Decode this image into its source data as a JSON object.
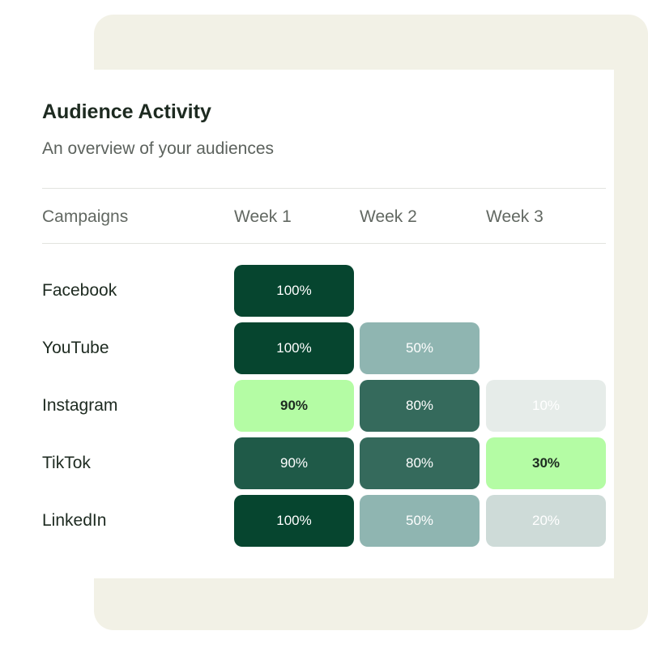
{
  "header": {
    "title": "Audience Activity",
    "subtitle": "An overview of your audiences"
  },
  "columns": {
    "campaigns": "Campaigns",
    "weeks": [
      "Week 1",
      "Week 2",
      "Week 3"
    ]
  },
  "rows": [
    {
      "campaign": "Facebook",
      "cells": [
        {
          "label": "100%",
          "value": 100,
          "bg": "#06452f",
          "fg": "#ffffff",
          "bold": false
        }
      ]
    },
    {
      "campaign": "YouTube",
      "cells": [
        {
          "label": "100%",
          "value": 100,
          "bg": "#06452f",
          "fg": "#ffffff",
          "bold": false
        },
        {
          "label": "50%",
          "value": 50,
          "bg": "#8fb5b1",
          "fg": "#ffffff",
          "bold": false
        }
      ]
    },
    {
      "campaign": "Instagram",
      "cells": [
        {
          "label": "90%",
          "value": 90,
          "bg": "#b4fca4",
          "fg": "#1d2a20",
          "bold": true
        },
        {
          "label": "80%",
          "value": 80,
          "bg": "#356a5c",
          "fg": "#ffffff",
          "bold": false
        },
        {
          "label": "10%",
          "value": 10,
          "bg": "#e6ece9",
          "fg": "#ffffff",
          "bold": false
        }
      ]
    },
    {
      "campaign": "TikTok",
      "cells": [
        {
          "label": "90%",
          "value": 90,
          "bg": "#1f5a48",
          "fg": "#ffffff",
          "bold": false
        },
        {
          "label": "80%",
          "value": 80,
          "bg": "#356a5c",
          "fg": "#ffffff",
          "bold": false
        },
        {
          "label": "30%",
          "value": 30,
          "bg": "#b4fca4",
          "fg": "#1d2a20",
          "bold": true
        }
      ]
    },
    {
      "campaign": "LinkedIn",
      "cells": [
        {
          "label": "100%",
          "value": 100,
          "bg": "#06452f",
          "fg": "#ffffff",
          "bold": false
        },
        {
          "label": "50%",
          "value": 50,
          "bg": "#8fb5b1",
          "fg": "#ffffff",
          "bold": false
        },
        {
          "label": "20%",
          "value": 20,
          "bg": "#cedbd8",
          "fg": "#ffffff",
          "bold": false
        }
      ]
    }
  ],
  "colors": {
    "backdrop": "#f2f1e6",
    "card": "#ffffff",
    "title_text": "#1d2a20",
    "muted_text": "#5c625d",
    "divider": "#e2e3df"
  }
}
